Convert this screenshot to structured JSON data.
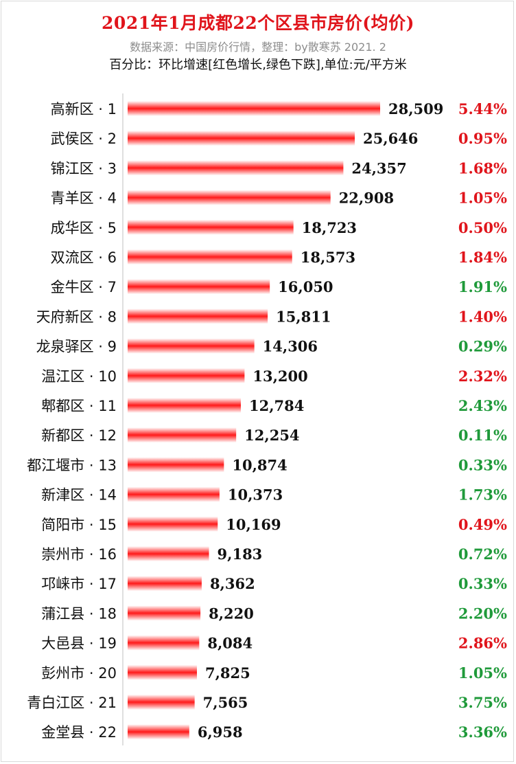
{
  "header": {
    "title": "2021年1月成都22个区县市房价(均价)",
    "subtitle": "数据来源：中国房价行情，整理：by散寒苏  2021. 2",
    "note": "百分比：环比增速[红色增长,绿色下跌],单位:元/平方米"
  },
  "colors": {
    "increase": "#e0141b",
    "decrease": "#1f9a3a",
    "bar": "#ff1a1a"
  },
  "chart_data": {
    "type": "bar",
    "orientation": "horizontal",
    "title": "2021年1月成都22个区县市房价(均价)",
    "ylabel": "",
    "xlabel": "",
    "unit": "元/平方米",
    "xlim": [
      0,
      28509
    ],
    "categories": [
      "高新区 · 1",
      "武侯区 · 2",
      "锦江区 · 3",
      "青羊区 · 4",
      "成华区 · 5",
      "双流区 · 6",
      "金牛区 · 7",
      "天府新区 · 8",
      "龙泉驿区 · 9",
      "温江区 · 10",
      "郫都区 · 11",
      "新都区 · 12",
      "都江堰市 · 13",
      "新津区 · 14",
      "简阳市 · 15",
      "崇州市 · 16",
      "邛崃市 · 17",
      "蒲江县 · 18",
      "大邑县 · 19",
      "彭州市 · 20",
      "青白江区 · 21",
      "金堂县 · 22"
    ],
    "values": [
      28509,
      25646,
      24357,
      22908,
      18723,
      18573,
      16050,
      15811,
      14306,
      13200,
      12784,
      12254,
      10874,
      10373,
      10169,
      9183,
      8362,
      8220,
      8084,
      7825,
      7565,
      6958
    ],
    "value_labels": [
      "28,509",
      "25,646",
      "24,357",
      "22,908",
      "18,723",
      "18,573",
      "16,050",
      "15,811",
      "14,306",
      "13,200",
      "12,784",
      "12,254",
      "10,874",
      "10,373",
      "10,169",
      "9,183",
      "8,362",
      "8,220",
      "8,084",
      "7,825",
      "7,565",
      "6,958"
    ],
    "growth_labels": [
      "5.44%",
      "0.95%",
      "1.68%",
      "1.05%",
      "0.50%",
      "1.84%",
      "1.91%",
      "1.40%",
      "0.29%",
      "2.32%",
      "2.43%",
      "0.11%",
      "0.33%",
      "1.73%",
      "0.49%",
      "0.72%",
      "0.33%",
      "2.20%",
      "2.86%",
      "1.05%",
      "3.75%",
      "3.36%"
    ],
    "growth_direction": [
      "up",
      "up",
      "up",
      "up",
      "up",
      "up",
      "down",
      "up",
      "down",
      "up",
      "down",
      "down",
      "down",
      "down",
      "up",
      "down",
      "down",
      "down",
      "up",
      "down",
      "down",
      "down"
    ]
  }
}
